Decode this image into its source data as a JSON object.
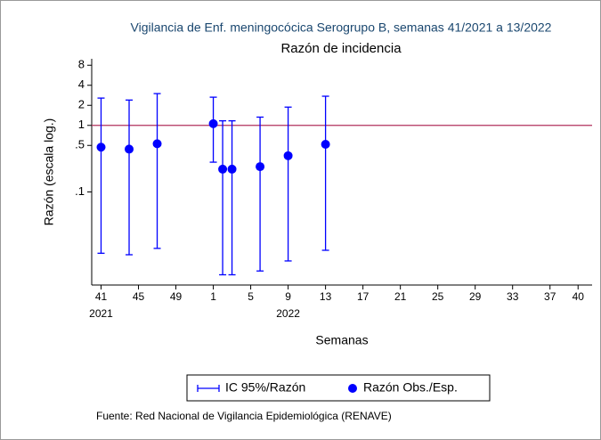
{
  "chart_data": {
    "type": "errorbar",
    "title": "Vigilancia de Enf. meningocócica Serogrupo B, semanas 41/2021 a 13/2022",
    "subtitle": "Razón de incidencia",
    "y_label": "Razón (escala log.)",
    "x_label": "Semanas",
    "note": "Fuente: Red Nacional de Vigilancia Epidemiológica (RENAVE)",
    "x": [
      0,
      3,
      6,
      12,
      13,
      14,
      17,
      20,
      24
    ],
    "series": [
      {
        "name": "Razón Obs./Esp.",
        "color": "#0000ff",
        "values": [
          0.47,
          0.44,
          0.53,
          1.06,
          0.22,
          0.22,
          0.24,
          0.35,
          0.52
        ]
      }
    ],
    "ci": {
      "name": "IC 95%/Razón",
      "color": "#0000ff",
      "lower": [
        0.012,
        0.0114,
        0.0142,
        0.28,
        0.0057,
        0.0057,
        0.0065,
        0.0092,
        0.0133
      ],
      "upper": [
        2.57,
        2.4,
        3.0,
        2.65,
        1.17,
        1.17,
        1.33,
        1.88,
        2.74
      ]
    },
    "reference_line": {
      "value": 1,
      "color": "#b0305c"
    },
    "y_scale": "log",
    "ylim": [
      0.004,
      10
    ],
    "yticks": [
      8,
      4,
      2,
      1,
      {
        "value": 0.5,
        "label": ".5"
      },
      {
        "value": 0.1,
        "label": ".1"
      }
    ],
    "xlim": [
      -1,
      52.5
    ],
    "xticks": [
      {
        "value": 0,
        "label": "41"
      },
      {
        "value": 4,
        "label": "45"
      },
      {
        "value": 8,
        "label": "49"
      },
      {
        "value": 12,
        "label": "1"
      },
      {
        "value": 16,
        "label": "5"
      },
      {
        "value": 20,
        "label": "9"
      },
      {
        "value": 24,
        "label": "13"
      },
      {
        "value": 28,
        "label": "17"
      },
      {
        "value": 32,
        "label": "21"
      },
      {
        "value": 36,
        "label": "25"
      },
      {
        "value": 40,
        "label": "29"
      },
      {
        "value": 44,
        "label": "33"
      },
      {
        "value": 48,
        "label": "37"
      },
      {
        "value": 51,
        "label": "40"
      }
    ],
    "year_labels": [
      {
        "value": 0,
        "label": "2021"
      },
      {
        "value": 20,
        "label": "2022"
      }
    ]
  }
}
